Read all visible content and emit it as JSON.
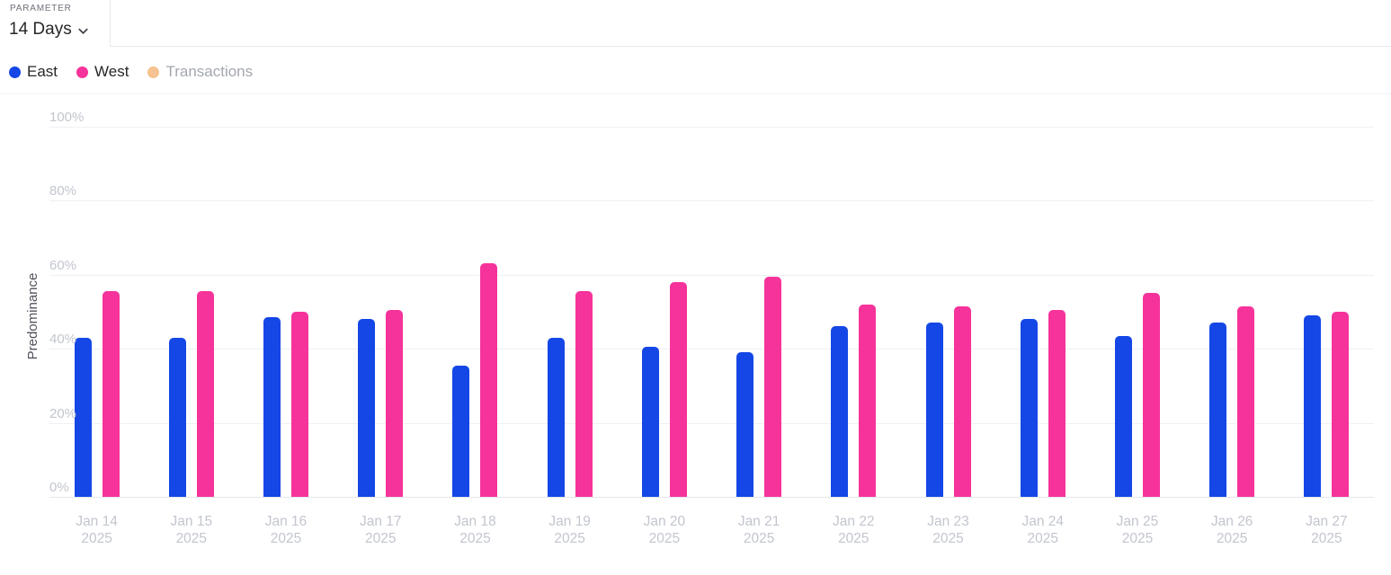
{
  "header": {
    "parameter_label": "PARAMETER",
    "parameter_value": "14 Days"
  },
  "legend": [
    {
      "label": "East",
      "color": "#1447e6",
      "active": true
    },
    {
      "label": "West",
      "color": "#f6339a",
      "active": true
    },
    {
      "label": "Transactions",
      "color": "#f6c28f",
      "active": false
    }
  ],
  "chart_data": {
    "type": "bar",
    "title": "",
    "xlabel": "",
    "ylabel": "Predominance",
    "ylim": [
      0,
      100
    ],
    "grid": true,
    "legend_position": "top-left",
    "ytick_values": [
      0,
      20,
      40,
      60,
      80,
      100
    ],
    "ytick_labels": [
      "0%",
      "20%",
      "40%",
      "60%",
      "80%",
      "100%"
    ],
    "categories": [
      "Jan 14",
      "Jan 15",
      "Jan 16",
      "Jan 17",
      "Jan 18",
      "Jan 19",
      "Jan 20",
      "Jan 21",
      "Jan 22",
      "Jan 23",
      "Jan 24",
      "Jan 25",
      "Jan 26",
      "Jan 27"
    ],
    "category_sublabel": "2025",
    "series": [
      {
        "name": "East",
        "color": "#1447e6",
        "hidden": false,
        "values": [
          43,
          43,
          48.5,
          48,
          35.5,
          43,
          40.5,
          39,
          46,
          47,
          48,
          43.5,
          47,
          49
        ]
      },
      {
        "name": "West",
        "color": "#f6339a",
        "hidden": false,
        "values": [
          55.5,
          55.5,
          50,
          50.5,
          63,
          55.5,
          58,
          59.5,
          52,
          51.5,
          50.5,
          55,
          51.5,
          50
        ]
      },
      {
        "name": "Transactions",
        "color": "#f6c28f",
        "hidden": true,
        "values": []
      }
    ]
  }
}
